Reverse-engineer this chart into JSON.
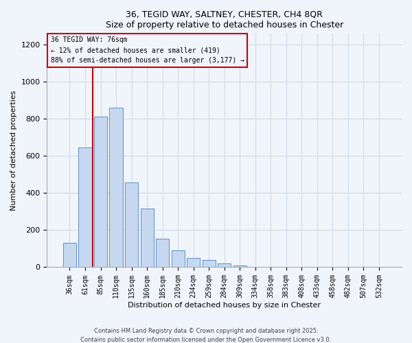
{
  "title": "36, TEGID WAY, SALTNEY, CHESTER, CH4 8QR",
  "subtitle": "Size of property relative to detached houses in Chester",
  "xlabel": "Distribution of detached houses by size in Chester",
  "ylabel": "Number of detached properties",
  "bar_labels": [
    "36sqm",
    "61sqm",
    "85sqm",
    "110sqm",
    "135sqm",
    "160sqm",
    "185sqm",
    "210sqm",
    "234sqm",
    "259sqm",
    "284sqm",
    "309sqm",
    "334sqm",
    "358sqm",
    "383sqm",
    "408sqm",
    "433sqm",
    "458sqm",
    "482sqm",
    "507sqm",
    "532sqm"
  ],
  "bar_values": [
    130,
    645,
    810,
    860,
    455,
    315,
    155,
    90,
    50,
    38,
    20,
    10,
    0,
    0,
    0,
    0,
    0,
    0,
    0,
    0,
    2
  ],
  "bar_color": "#c5d8f0",
  "bar_edge_color": "#5b8fc9",
  "ylim": [
    0,
    1260
  ],
  "yticks": [
    0,
    200,
    400,
    600,
    800,
    1000,
    1200
  ],
  "vline_color": "#cc0000",
  "annotation_title": "36 TEGID WAY: 76sqm",
  "annotation_line1": "← 12% of detached houses are smaller (419)",
  "annotation_line2": "88% of semi-detached houses are larger (3,177) →",
  "annotation_box_color": "#cc0000",
  "footer1": "Contains HM Land Registry data © Crown copyright and database right 2025.",
  "footer2": "Contains public sector information licensed under the Open Government Licence v3.0.",
  "bg_color": "#f0f4fb",
  "grid_color": "#d0dce8"
}
